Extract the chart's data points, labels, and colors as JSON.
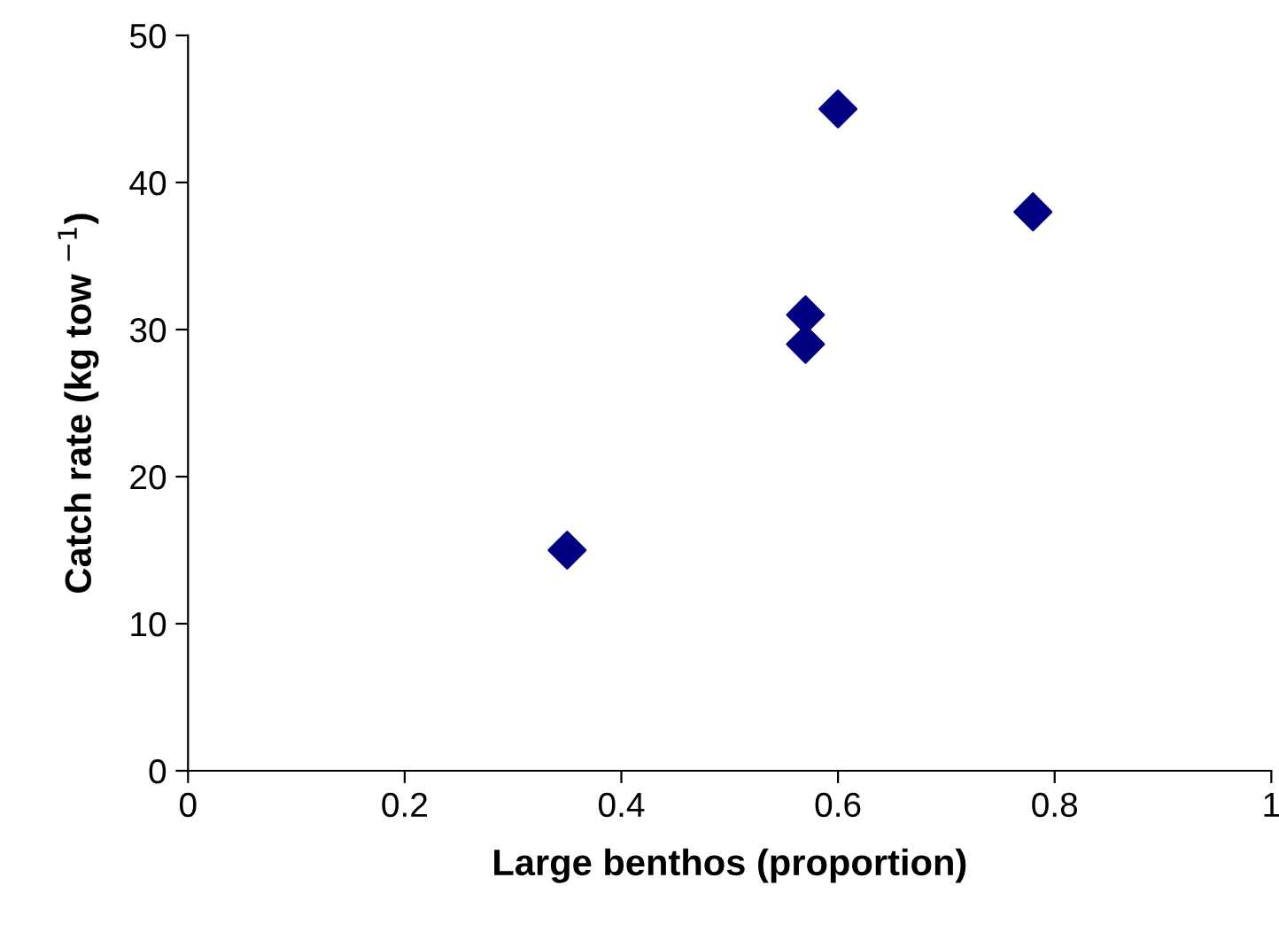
{
  "chart_data": {
    "type": "scatter",
    "xlabel": "Large benthos (proportion)",
    "ylabel": "Catch rate (kg tow $^{−1}$)",
    "x": [
      0.35,
      0.57,
      0.57,
      0.6,
      0.78
    ],
    "series": [
      {
        "color": "#000080",
        "values": [
          15,
          31,
          29,
          45,
          38
        ]
      }
    ],
    "xlim": [
      0,
      1
    ],
    "xticks": [
      0,
      0.2,
      0.4,
      0.6,
      0.8,
      1
    ],
    "ylim": [
      0,
      50
    ],
    "yticks": [
      0,
      10,
      20,
      30,
      40,
      50
    ],
    "marker": "diamond",
    "grid": false,
    "legend": false
  }
}
